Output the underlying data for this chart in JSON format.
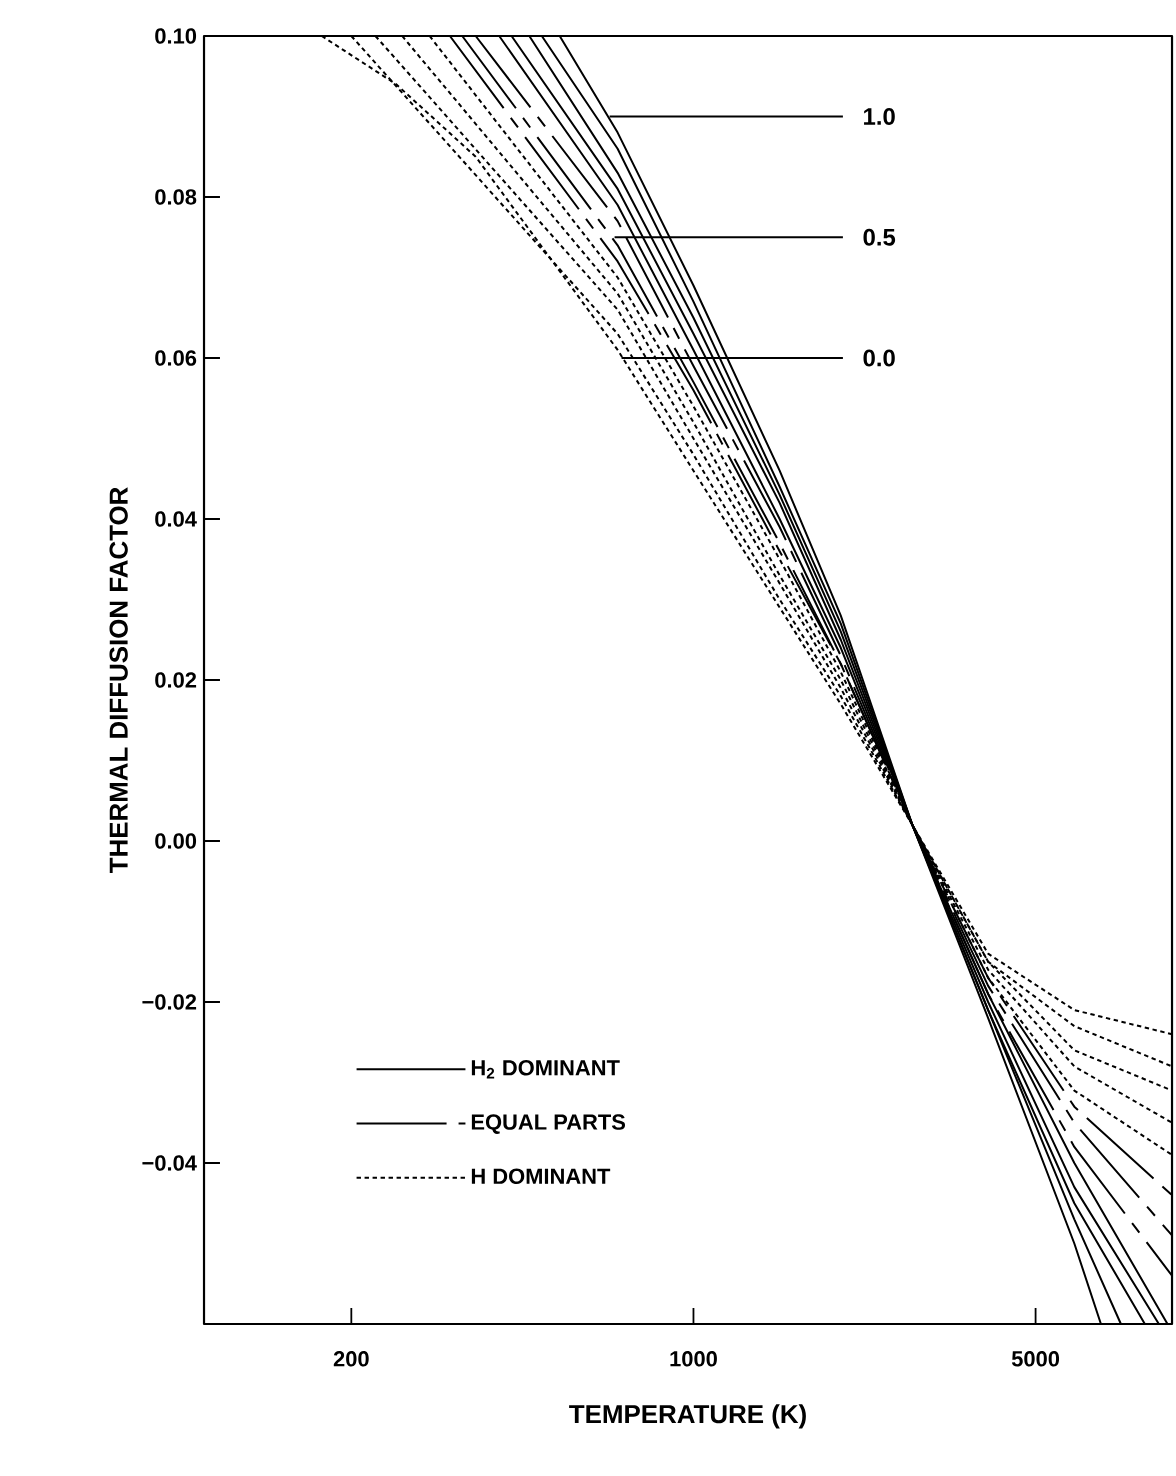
{
  "chart_data": {
    "type": "line",
    "xlabel": "TEMPERATURE (K)",
    "ylabel": "THERMAL DIFFUSION FACTOR",
    "log": "x",
    "xlim": [
      100,
      9500
    ],
    "ylim": [
      -0.06,
      0.1
    ],
    "xticks": [
      200,
      1000,
      5000
    ],
    "yticks": [
      {
        "value": 0.1,
        "label": "0.10"
      },
      {
        "value": 0.08,
        "label": "0.08"
      },
      {
        "value": 0.06,
        "label": "0.06"
      },
      {
        "value": 0.04,
        "label": "0.04"
      },
      {
        "value": 0.02,
        "label": "0.02"
      },
      {
        "value": 0,
        "label": "0.00"
      },
      {
        "value": -0.02,
        "label": "−0.02"
      },
      {
        "value": -0.04,
        "label": "−0.04"
      },
      {
        "value": -0.06,
        "label": null
      }
    ],
    "grid": false,
    "legend": "bottom left",
    "marker": "none",
    "annotations": [
      {
        "text": "1.0",
        "x": 674,
        "y": 0.09
      },
      {
        "text": "0.5",
        "x": 690,
        "y": 0.075
      },
      {
        "text": "0.0",
        "x": 713,
        "y": 0.06
      }
    ],
    "series": [
      {
        "name": "H$_{2}$ DOMINANT",
        "color": "#000000",
        "line_style": "solid",
        "x": [
          533,
          700,
          1000,
          1500,
          2000,
          2800,
          4000,
          6000,
          6800
        ],
        "values": [
          0.1,
          0.088,
          0.069,
          0.046,
          0.028,
          0.002,
          -0.022,
          -0.05,
          -0.06
        ]
      },
      {
        "color": "#000000",
        "line_style": "solid",
        "x": [
          490,
          700,
          1000,
          1500,
          2000,
          2800,
          4000,
          6000,
          7470
        ],
        "values": [
          0.1,
          0.086,
          0.067,
          0.044,
          0.027,
          0.002,
          -0.021,
          -0.047,
          -0.06
        ]
      },
      {
        "color": "#000000",
        "line_style": "solid",
        "x": [
          462,
          700,
          1000,
          1500,
          2000,
          2800,
          4000,
          6000,
          8360
        ],
        "values": [
          0.1,
          0.083,
          0.065,
          0.043,
          0.026,
          0.002,
          -0.021,
          -0.045,
          -0.06
        ]
      },
      {
        "color": "#000000",
        "line_style": "solid",
        "x": [
          425,
          700,
          1000,
          1500,
          2000,
          2800,
          4000,
          6000,
          8930
        ],
        "values": [
          0.1,
          0.081,
          0.063,
          0.042,
          0.025,
          0.002,
          -0.02,
          -0.043,
          -0.06
        ]
      },
      {
        "color": "#000000",
        "line_style": "solid",
        "x": [
          401,
          700,
          1000,
          1500,
          2000,
          2800,
          4000,
          6000,
          9300
        ],
        "values": [
          0.1,
          0.079,
          0.061,
          0.04,
          0.024,
          0.002,
          -0.019,
          -0.04,
          -0.06
        ]
      },
      {
        "name": "EQUAL PARTS",
        "color": "#000000",
        "line_style": "dashdot",
        "x": [
          359,
          700,
          1000,
          1500,
          2000,
          2800,
          4000,
          6000,
          9500
        ],
        "values": [
          0.1,
          0.077,
          0.059,
          0.039,
          0.023,
          0.002,
          -0.019,
          -0.038,
          -0.054
        ]
      },
      {
        "color": "#000000",
        "line_style": "dashdot",
        "x": [
          337,
          700,
          1000,
          1500,
          2000,
          2800,
          4000,
          6000,
          9500
        ],
        "values": [
          0.1,
          0.074,
          0.057,
          0.037,
          0.022,
          0.002,
          -0.018,
          -0.035,
          -0.049
        ]
      },
      {
        "color": "#000000",
        "line_style": "dashdot",
        "x": [
          318,
          700,
          1000,
          1500,
          2000,
          2800,
          4000,
          6000,
          9500
        ],
        "values": [
          0.1,
          0.072,
          0.056,
          0.036,
          0.022,
          0.002,
          -0.017,
          -0.033,
          -0.044
        ]
      },
      {
        "name": "H DOMINANT",
        "color": "#000000",
        "line_style": "dotted",
        "x": [
          174,
          247,
          359,
          700,
          1000,
          1500,
          2000,
          2800,
          4000,
          6000,
          9500
        ],
        "values": [
          0.1,
          0.094,
          0.085,
          0.061,
          0.046,
          0.029,
          0.017,
          0.002,
          -0.014,
          -0.021,
          -0.024
        ]
      },
      {
        "color": "#000000",
        "line_style": "dotted",
        "x": [
          200,
          700,
          1000,
          1500,
          2000,
          2800,
          4000,
          6000,
          9500
        ],
        "values": [
          0.1,
          0.063,
          0.048,
          0.03,
          0.018,
          0.002,
          -0.015,
          -0.023,
          -0.028
        ]
      },
      {
        "color": "#000000",
        "line_style": "dotted",
        "x": [
          224,
          700,
          1000,
          1500,
          2000,
          2800,
          4000,
          6000,
          9500
        ],
        "values": [
          0.1,
          0.066,
          0.05,
          0.032,
          0.019,
          0.002,
          -0.015,
          -0.026,
          -0.031
        ]
      },
      {
        "color": "#000000",
        "line_style": "dotted",
        "x": [
          254,
          700,
          1000,
          1500,
          2000,
          2800,
          4000,
          6000,
          9500
        ],
        "values": [
          0.1,
          0.068,
          0.052,
          0.033,
          0.02,
          0.002,
          -0.016,
          -0.028,
          -0.035
        ]
      },
      {
        "color": "#000000",
        "line_style": "dotted",
        "x": [
          289,
          700,
          1000,
          1500,
          2000,
          2800,
          4000,
          6000,
          9500
        ],
        "values": [
          0.1,
          0.07,
          0.054,
          0.035,
          0.021,
          0.002,
          -0.017,
          -0.031,
          -0.039
        ]
      }
    ]
  }
}
